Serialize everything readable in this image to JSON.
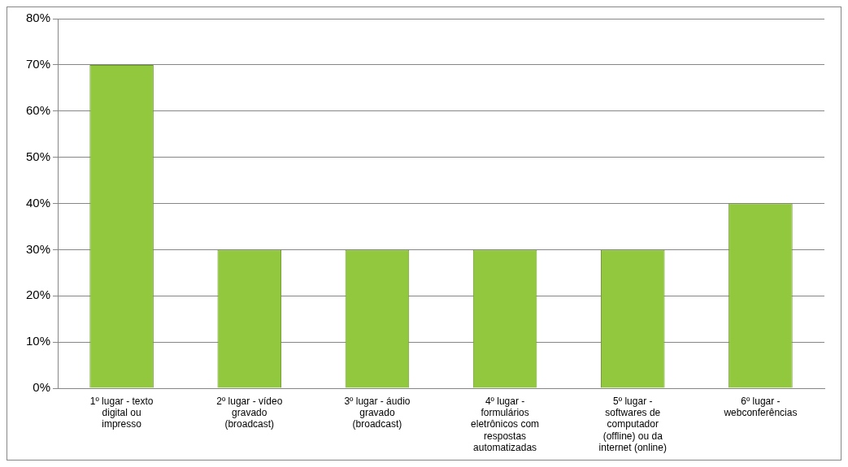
{
  "chart_data": {
    "type": "bar",
    "categories": [
      "1º lugar - texto digital ou impresso",
      "2º lugar - vídeo gravado (broadcast)",
      "3º lugar - áudio gravado (broadcast)",
      "4º lugar - formulários eletrônicos com respostas automatizadas",
      "5º lugar - softwares de computador (offline) ou da internet (online)",
      "6º lugar - webconferências"
    ],
    "values": [
      70,
      30,
      30,
      30,
      30,
      40
    ],
    "color": "#92c83e",
    "ylim": [
      0,
      80
    ],
    "yticks": [
      {
        "value": 0,
        "label": "0%"
      },
      {
        "value": 10,
        "label": "10%"
      },
      {
        "value": 20,
        "label": "20%"
      },
      {
        "value": 30,
        "label": "30%"
      },
      {
        "value": 40,
        "label": "40%"
      },
      {
        "value": 50,
        "label": "50%"
      },
      {
        "value": 60,
        "label": "60%"
      },
      {
        "value": 70,
        "label": "70%"
      },
      {
        "value": 80,
        "label": "80%"
      }
    ],
    "grid": "y",
    "legend": false
  }
}
